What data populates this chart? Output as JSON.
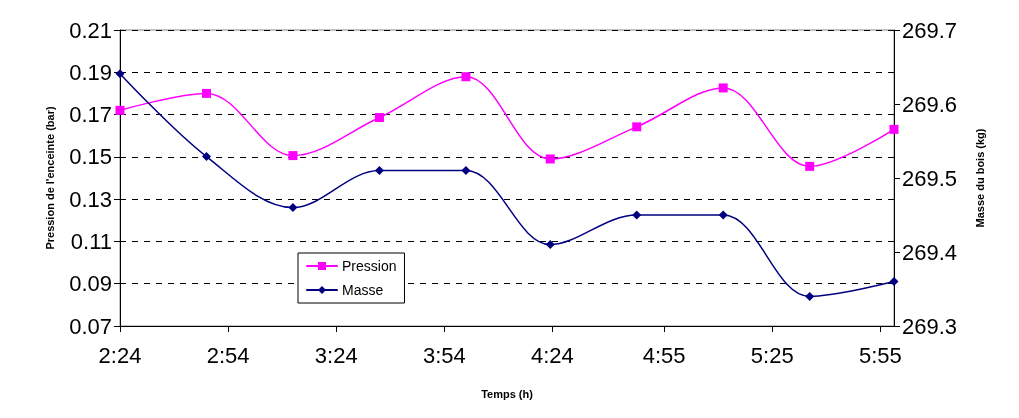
{
  "chart_data": {
    "type": "line",
    "xlabel": "Temps (h)",
    "ylabel": "Pression de l'enceinte (bar)",
    "y2label": "Masse du bois (kg)",
    "x": [
      2.4,
      2.8,
      3.2,
      3.6,
      4.0,
      4.39,
      4.79,
      5.19,
      5.59,
      5.98
    ],
    "series": [
      {
        "name": "Pression",
        "color": "#ff00ff",
        "marker": "square",
        "values": [
          0.172,
          0.18,
          0.1506,
          0.1686,
          0.1879,
          0.149,
          0.1642,
          0.1826,
          0.1455,
          0.163
        ]
      },
      {
        "name": "Masse",
        "color": "#000080",
        "marker": "diamond",
        "axis": "y2",
        "values": [
          269.641,
          269.529,
          269.46,
          269.51,
          269.51,
          269.41,
          269.45,
          269.45,
          269.34,
          269.36
        ]
      }
    ],
    "xlim": [
      2.4,
      5.98
    ],
    "xticks": [
      {
        "value": 2.4,
        "label": "2:24"
      },
      {
        "value": 2.9,
        "label": "2:54"
      },
      {
        "value": 3.4,
        "label": "3:24"
      },
      {
        "value": 3.9,
        "label": "3:54"
      },
      {
        "value": 4.4,
        "label": "4:24"
      },
      {
        "value": 4.917,
        "label": "4:55"
      },
      {
        "value": 5.417,
        "label": "5:25"
      },
      {
        "value": 5.917,
        "label": "5:55"
      }
    ],
    "ylim": [
      0.07,
      0.21
    ],
    "yticks": [
      0.07,
      0.09,
      0.11,
      0.13,
      0.15,
      0.17,
      0.19,
      0.21
    ],
    "y2lim": [
      269.3,
      269.7
    ],
    "y2ticks": [
      269.3,
      269.4,
      269.5,
      269.6,
      269.7
    ],
    "grid": "y",
    "legend": "bottom left",
    "line_style": "solid"
  }
}
